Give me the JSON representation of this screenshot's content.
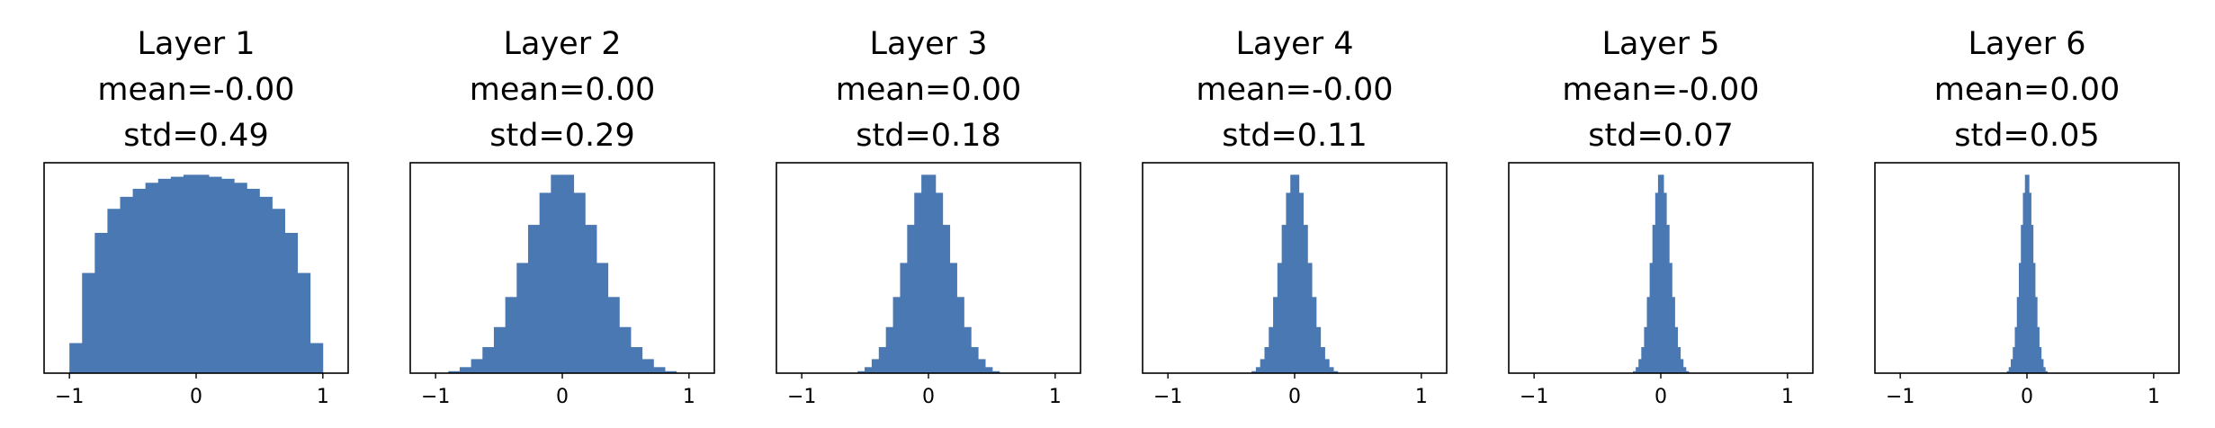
{
  "chart_data": [
    {
      "type": "histogram",
      "title_lines": [
        "Layer 1",
        "mean=-0.00",
        "std=0.49"
      ],
      "color": "#4a78b2",
      "bins": [
        -1.0,
        -0.9,
        -0.8,
        -0.7,
        -0.6,
        -0.5,
        -0.4,
        -0.3,
        -0.2,
        -0.1,
        0,
        0.1,
        0.2,
        0.3,
        0.4,
        0.5,
        0.6,
        0.7,
        0.8,
        0.9,
        1.0
      ],
      "values": [
        15,
        50,
        70,
        82,
        88,
        92,
        95,
        97,
        98,
        99,
        99,
        98,
        97,
        95,
        92,
        88,
        82,
        70,
        50,
        15
      ],
      "xlim": [
        -1.2,
        1.2
      ],
      "ylim": [
        0,
        105
      ],
      "xticks": [
        {
          "value": -1,
          "label": "−1"
        },
        0,
        1
      ]
    },
    {
      "type": "histogram",
      "title_lines": [
        "Layer 2",
        "mean=0.00",
        "std=0.29"
      ],
      "color": "#4a78b2",
      "bins": [
        -0.9,
        -0.81,
        -0.72,
        -0.63,
        -0.54,
        -0.45,
        -0.36,
        -0.27,
        -0.18,
        -0.09,
        0,
        0.09,
        0.18,
        0.27,
        0.36,
        0.45,
        0.54,
        0.63,
        0.72,
        0.81,
        0.9
      ],
      "values": [
        1,
        3,
        7,
        13,
        23,
        38,
        55,
        74,
        90,
        99,
        99,
        90,
        74,
        55,
        38,
        23,
        13,
        7,
        3,
        1
      ],
      "xlim": [
        -1.2,
        1.2
      ],
      "ylim": [
        0,
        105
      ],
      "xticks": [
        {
          "value": -1,
          "label": "−1"
        },
        0,
        1
      ]
    },
    {
      "type": "histogram",
      "title_lines": [
        "Layer 3",
        "mean=0.00",
        "std=0.18"
      ],
      "color": "#4a78b2",
      "bins": [
        -0.56,
        -0.504,
        -0.448,
        -0.392,
        -0.336,
        -0.28,
        -0.224,
        -0.168,
        -0.112,
        -0.056,
        0,
        0.056,
        0.112,
        0.168,
        0.224,
        0.28,
        0.336,
        0.392,
        0.448,
        0.504,
        0.56
      ],
      "values": [
        1,
        3,
        7,
        13,
        23,
        38,
        55,
        74,
        90,
        99,
        99,
        90,
        74,
        55,
        38,
        23,
        13,
        7,
        3,
        1
      ],
      "xlim": [
        -1.2,
        1.2
      ],
      "ylim": [
        0,
        105
      ],
      "xticks": [
        {
          "value": -1,
          "label": "−1"
        },
        0,
        1
      ]
    },
    {
      "type": "histogram",
      "title_lines": [
        "Layer 4",
        "mean=-0.00",
        "std=0.11"
      ],
      "color": "#4a78b2",
      "bins": [
        -0.34,
        -0.306,
        -0.272,
        -0.238,
        -0.204,
        -0.17,
        -0.136,
        -0.102,
        -0.068,
        -0.034,
        0,
        0.034,
        0.068,
        0.102,
        0.136,
        0.17,
        0.204,
        0.238,
        0.272,
        0.306,
        0.34
      ],
      "values": [
        1,
        3,
        7,
        13,
        23,
        38,
        55,
        74,
        90,
        99,
        99,
        90,
        74,
        55,
        38,
        23,
        13,
        7,
        3,
        1
      ],
      "xlim": [
        -1.2,
        1.2
      ],
      "ylim": [
        0,
        105
      ],
      "xticks": [
        {
          "value": -1,
          "label": "−1"
        },
        0,
        1
      ]
    },
    {
      "type": "histogram",
      "title_lines": [
        "Layer 5",
        "mean=-0.00",
        "std=0.07"
      ],
      "color": "#4a78b2",
      "bins": [
        -0.22,
        -0.198,
        -0.176,
        -0.154,
        -0.132,
        -0.11,
        -0.088,
        -0.066,
        -0.044,
        -0.022,
        0,
        0.022,
        0.044,
        0.066,
        0.088,
        0.11,
        0.132,
        0.154,
        0.176,
        0.198,
        0.22
      ],
      "values": [
        1,
        3,
        7,
        13,
        23,
        38,
        55,
        74,
        90,
        99,
        99,
        90,
        74,
        55,
        38,
        23,
        13,
        7,
        3,
        1
      ],
      "xlim": [
        -1.2,
        1.2
      ],
      "ylim": [
        0,
        105
      ],
      "xticks": [
        {
          "value": -1,
          "label": "−1"
        },
        0,
        1
      ]
    },
    {
      "type": "histogram",
      "title_lines": [
        "Layer 6",
        "mean=0.00",
        "std=0.05"
      ],
      "color": "#4a78b2",
      "bins": [
        -0.16,
        -0.144,
        -0.128,
        -0.112,
        -0.096,
        -0.08,
        -0.064,
        -0.048,
        -0.032,
        -0.016,
        0,
        0.016,
        0.032,
        0.048,
        0.064,
        0.08,
        0.096,
        0.112,
        0.128,
        0.144,
        0.16
      ],
      "values": [
        1,
        3,
        7,
        13,
        23,
        38,
        55,
        74,
        90,
        99,
        99,
        90,
        74,
        55,
        38,
        23,
        13,
        7,
        3,
        1
      ],
      "xlim": [
        -1.2,
        1.2
      ],
      "ylim": [
        0,
        105
      ],
      "xticks": [
        {
          "value": -1,
          "label": "−1"
        },
        0,
        1
      ]
    }
  ]
}
